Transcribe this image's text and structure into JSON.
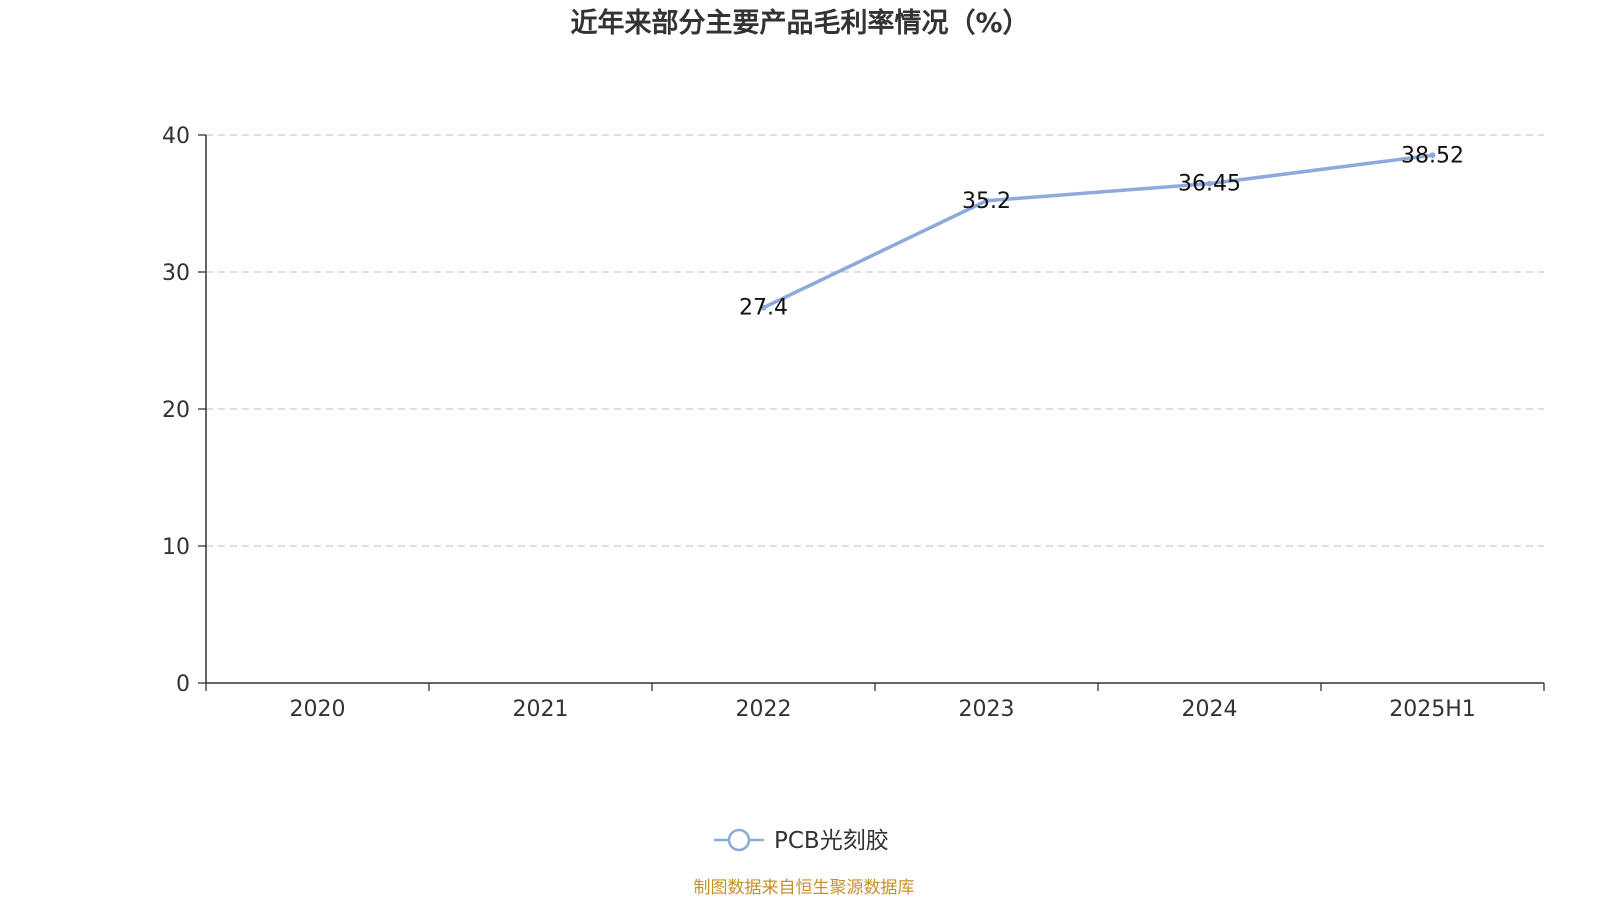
{
  "chart_data": {
    "type": "line",
    "title": "近年来部分主要产品毛利率情况（%）",
    "categories": [
      "2020",
      "2021",
      "2022",
      "2023",
      "2024",
      "2025H1"
    ],
    "series": [
      {
        "name": "PCB光刻胶",
        "values": [
          null,
          null,
          27.4,
          35.2,
          36.45,
          38.52
        ],
        "labels": [
          "",
          "",
          "27.4",
          "35.2",
          "36.45",
          "38.52"
        ],
        "color": "#8eaadb"
      }
    ],
    "ylim": [
      0,
      40
    ],
    "yticks": [
      "0",
      "10",
      "20",
      "30",
      "40"
    ],
    "xlabel": "",
    "ylabel": "",
    "grid": "horizontal dashed",
    "legend": "bottom-center"
  },
  "source": {
    "text": "制图数据来自恒生聚源数据库",
    "color": "#c8902a"
  },
  "colors": {
    "axis": "#333333",
    "grid": "#cccccc",
    "text": "#333333"
  }
}
